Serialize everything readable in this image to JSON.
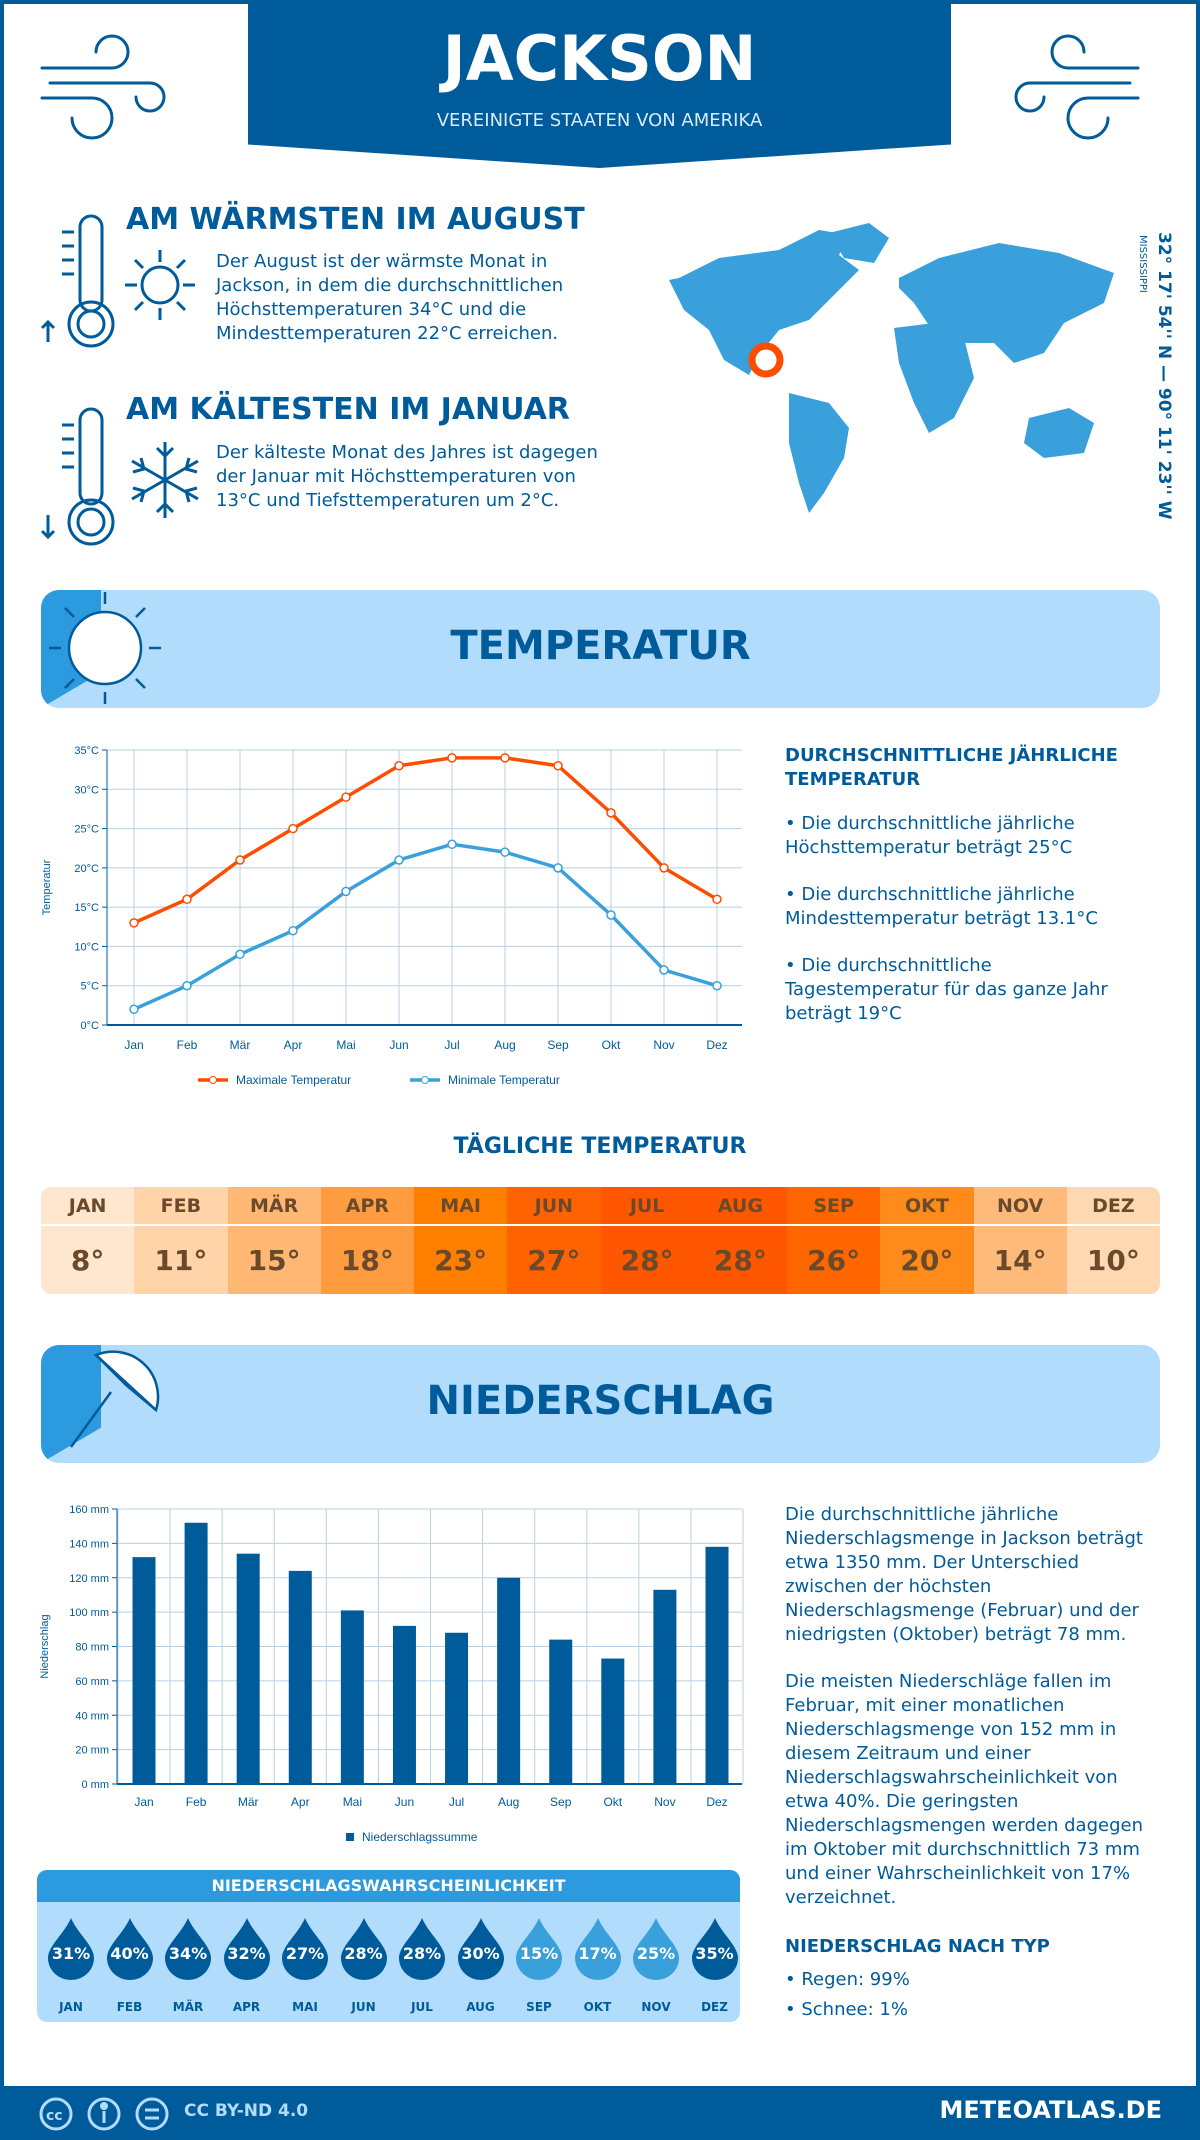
{
  "header": {
    "title": "JACKSON",
    "subtitle": "VEREINIGTE STAATEN VON AMERIKA"
  },
  "warm": {
    "heading": "AM WÄRMSTEN IM AUGUST",
    "text": "Der August ist der wärmste Monat in Jackson, in dem die durchschnittlichen Höchsttemperaturen 34°C und die Mindesttemperaturen 22°C erreichen."
  },
  "cold": {
    "heading": "AM KÄLTESTEN IM JANUAR",
    "text": "Der kälteste Monat des Jahres ist dagegen der Januar mit Höchsttemperaturen von 13°C und Tiefsttemperaturen um 2°C."
  },
  "coords": {
    "text": "32° 17' 54'' N — 90° 11' 23'' W",
    "region": "MISSISSIPPI"
  },
  "temp_section": {
    "title": "TEMPERATUR",
    "side_heading": "DURCHSCHNITTLICHE JÄHRLICHE TEMPERATUR",
    "bullets": [
      "• Die durchschnittliche jährliche Höchsttemperatur beträgt 25°C",
      "• Die durchschnittliche jährliche Mindesttemperatur beträgt 13.1°C",
      "• Die durchschnittliche Tagestemperatur für das ganze Jahr beträgt 19°C"
    ]
  },
  "daily": {
    "title": "TÄGLICHE TEMPERATUR",
    "months": [
      "JAN",
      "FEB",
      "MÄR",
      "APR",
      "MAI",
      "JUN",
      "JUL",
      "AUG",
      "SEP",
      "OKT",
      "NOV",
      "DEZ"
    ],
    "values": [
      "8°",
      "11°",
      "15°",
      "18°",
      "23°",
      "27°",
      "28°",
      "28°",
      "26°",
      "20°",
      "14°",
      "10°"
    ],
    "colors": [
      "#fee6cf",
      "#fed4a8",
      "#feb873",
      "#fe9c3f",
      "#fe7f00",
      "#ff6200",
      "#ff5700",
      "#ff5700",
      "#ff6600",
      "#ff8c1a",
      "#feba7b",
      "#fed8b0"
    ]
  },
  "precip_section": {
    "title": "NIEDERSCHLAG",
    "text1": "Die durchschnittliche jährliche Niederschlagsmenge in Jackson beträgt etwa 1350 mm. Der Unterschied zwischen der höchsten Niederschlagsmenge (Februar) und der niedrigsten (Oktober) beträgt 78 mm.",
    "text2": "Die meisten Niederschläge fallen im Februar, mit einer monatlichen Niederschlagsmenge von 152 mm in diesem Zeitraum und einer Niederschlagswahrscheinlichkeit von etwa 40%. Die geringsten Niederschlagsmengen werden dagegen im Oktober mit durchschnittlich 73 mm und einer Wahrscheinlichkeit von 17% verzeichnet.",
    "type_heading": "NIEDERSCHLAG NACH TYP",
    "types": [
      "• Regen: 99%",
      "• Schnee: 1%"
    ]
  },
  "probability": {
    "title": "NIEDERSCHLAGSWAHRSCHEINLICHKEIT",
    "values": [
      "31%",
      "40%",
      "34%",
      "32%",
      "27%",
      "28%",
      "28%",
      "30%",
      "15%",
      "17%",
      "25%",
      "35%"
    ],
    "months": [
      "JAN",
      "FEB",
      "MÄR",
      "APR",
      "MAI",
      "JUN",
      "JUL",
      "AUG",
      "SEP",
      "OKT",
      "NOV",
      "DEZ"
    ],
    "dark_color": "#005b9a",
    "light_color": "#3aa0dc"
  },
  "chart_data": [
    {
      "type": "line",
      "categories": [
        "Jan",
        "Feb",
        "Mär",
        "Apr",
        "Mai",
        "Jun",
        "Jul",
        "Aug",
        "Sep",
        "Okt",
        "Nov",
        "Dez"
      ],
      "ylabel": "Temperatur",
      "ylim": [
        0,
        35
      ],
      "yticks": [
        "0°C",
        "5°C",
        "10°C",
        "15°C",
        "20°C",
        "25°C",
        "30°C",
        "35°C"
      ],
      "grid": true,
      "legend": "bottom",
      "series": [
        {
          "name": "Maximale Temperatur",
          "color": "#ff4d00",
          "values": [
            13,
            16,
            21,
            25,
            29,
            33,
            34,
            34,
            33,
            27,
            20,
            16
          ]
        },
        {
          "name": "Minimale Temperatur",
          "color": "#3aa0dc",
          "values": [
            2,
            5,
            9,
            12,
            17,
            21,
            23,
            22,
            20,
            14,
            7,
            5
          ]
        }
      ]
    },
    {
      "type": "bar",
      "categories": [
        "Jan",
        "Feb",
        "Mär",
        "Apr",
        "Mai",
        "Jun",
        "Jul",
        "Aug",
        "Sep",
        "Okt",
        "Nov",
        "Dez"
      ],
      "ylabel": "Niederschlag",
      "ylim": [
        0,
        160
      ],
      "yticks": [
        "0 mm",
        "20 mm",
        "40 mm",
        "60 mm",
        "80 mm",
        "100 mm",
        "120 mm",
        "140 mm",
        "160 mm"
      ],
      "grid": true,
      "legend": "bottom",
      "series": [
        {
          "name": "Niederschlagssumme",
          "color": "#005b9a",
          "values": [
            132,
            152,
            134,
            124,
            101,
            92,
            88,
            120,
            84,
            73,
            113,
            138
          ]
        }
      ]
    }
  ],
  "footer": {
    "license": "CC BY-ND 4.0",
    "brand": "METEOATLAS.DE"
  }
}
